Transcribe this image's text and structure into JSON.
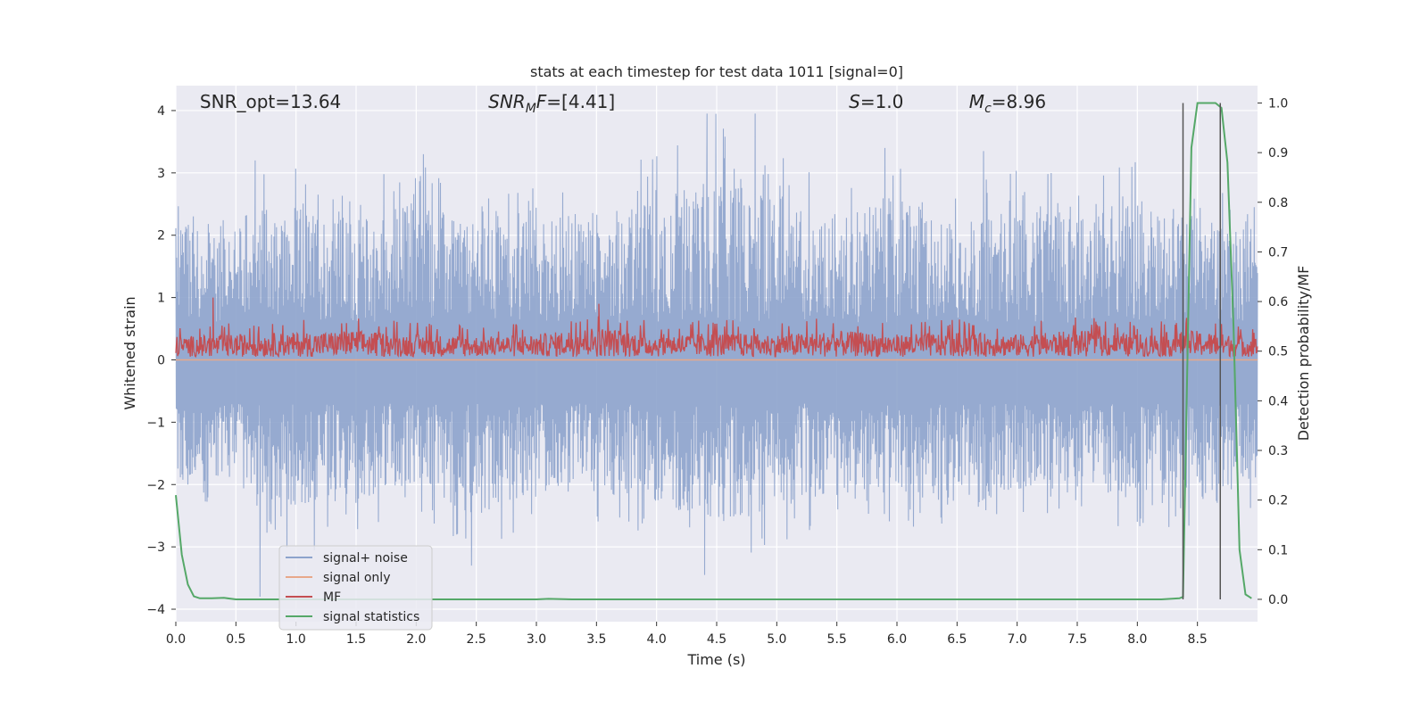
{
  "chart_data": {
    "type": "line",
    "title": "stats at each timestep for test data 1011 [signal=0]",
    "xlabel": "Time (s)",
    "ylabel": "Whitened strain",
    "y2label": "Detection probability/MF",
    "xlim": [
      0.0,
      9.0
    ],
    "ylim": [
      -4.2,
      4.4
    ],
    "y2lim": [
      -0.045,
      1.035
    ],
    "x_ticks": [
      0.0,
      0.5,
      1.0,
      1.5,
      2.0,
      2.5,
      3.0,
      3.5,
      4.0,
      4.5,
      5.0,
      5.5,
      6.0,
      6.5,
      7.0,
      7.5,
      8.0,
      8.5
    ],
    "x_tick_labels": [
      "0.0",
      "0.5",
      "1.0",
      "1.5",
      "2.0",
      "2.5",
      "3.0",
      "3.5",
      "4.0",
      "4.5",
      "5.0",
      "5.5",
      "6.0",
      "6.5",
      "7.0",
      "7.5",
      "8.0",
      "8.5"
    ],
    "y_ticks": [
      -4,
      -3,
      -2,
      -1,
      0,
      1,
      2,
      3,
      4
    ],
    "y_tick_labels": [
      "−4",
      "−3",
      "−2",
      "−1",
      "0",
      "1",
      "2",
      "3",
      "4"
    ],
    "y2_ticks": [
      0.0,
      0.1,
      0.2,
      0.3,
      0.4,
      0.5,
      0.6,
      0.7,
      0.8,
      0.9,
      1.0
    ],
    "y2_tick_labels": [
      "0.0",
      "0.1",
      "0.2",
      "0.3",
      "0.4",
      "0.5",
      "0.6",
      "0.7",
      "0.8",
      "0.9",
      "1.0"
    ],
    "grid": true,
    "legend_position": "lower-left",
    "annotations": [
      {
        "text": "SNR_opt=13.64",
        "x": 0.2
      },
      {
        "text": "SNR",
        "sub": "M",
        "tail": "F=[4.41]",
        "x": 2.6
      },
      {
        "text": "S",
        "tail": "=1.0",
        "x": 5.6
      },
      {
        "text": "M",
        "sub": "c",
        "tail": "=8.96",
        "x": 6.6
      }
    ],
    "vlines": [
      {
        "x": 8.38,
        "y2_range": [
          0.0,
          1.0
        ],
        "color": "#555555"
      },
      {
        "x": 8.69,
        "y2_range": [
          0.0,
          1.0
        ],
        "color": "#555555"
      }
    ],
    "series": [
      {
        "name": "signal+ noise",
        "color": "#8da3cc",
        "axis": "left",
        "note": "dense whitened strain trace",
        "envelope_samples": {
          "x": [
            0.0,
            0.5,
            1.0,
            1.5,
            2.0,
            2.5,
            3.0,
            3.5,
            4.0,
            4.5,
            5.0,
            5.5,
            6.0,
            6.5,
            7.0,
            7.5,
            8.0,
            8.5,
            9.0
          ],
          "upper": [
            2.6,
            2.9,
            3.1,
            2.8,
            3.3,
            2.6,
            2.8,
            3.0,
            3.3,
            4.0,
            3.3,
            2.9,
            3.4,
            2.6,
            3.3,
            2.8,
            3.4,
            2.9,
            2.6
          ],
          "lower": [
            -2.2,
            -2.5,
            -3.2,
            -2.8,
            -2.4,
            -3.3,
            -2.6,
            -2.6,
            -2.9,
            -3.5,
            -3.1,
            -2.6,
            -2.6,
            -3.1,
            -2.5,
            -2.6,
            -2.7,
            -2.7,
            -2.4
          ]
        },
        "peaks": [
          [
            0.66,
            3.2
          ],
          [
            0.7,
            -3.8
          ],
          [
            2.06,
            3.3
          ],
          [
            2.46,
            -3.3
          ],
          [
            4.42,
            3.95
          ],
          [
            4.4,
            -3.45
          ],
          [
            4.82,
            3.95
          ],
          [
            6.72,
            3.35
          ],
          [
            5.9,
            3.4
          ]
        ]
      },
      {
        "name": "signal only",
        "color": "#e8a88a",
        "axis": "left",
        "x": [
          0.0,
          9.0
        ],
        "y": [
          0.0,
          0.0
        ]
      },
      {
        "name": "MF",
        "color": "#c44e52",
        "axis": "left",
        "note": "matched filter output, dense trace",
        "envelope_samples": {
          "x": [
            0.0,
            0.5,
            1.0,
            1.5,
            2.0,
            2.5,
            3.0,
            3.5,
            4.0,
            4.5,
            5.0,
            5.5,
            6.0,
            6.5,
            7.0,
            7.5,
            8.0,
            8.5,
            9.0
          ],
          "upper": [
            0.55,
            0.6,
            0.65,
            0.7,
            0.6,
            0.55,
            0.6,
            0.8,
            0.6,
            0.65,
            0.6,
            0.7,
            0.6,
            0.65,
            0.6,
            0.7,
            0.6,
            0.7,
            0.5
          ],
          "lower": [
            0.0,
            0.0,
            0.0,
            0.0,
            0.0,
            0.0,
            0.0,
            0.0,
            0.0,
            0.0,
            0.0,
            0.0,
            0.0,
            0.0,
            0.0,
            0.0,
            0.0,
            0.0,
            0.0
          ]
        },
        "peaks": [
          [
            0.31,
            1.0
          ],
          [
            3.52,
            0.9
          ]
        ]
      },
      {
        "name": "signal statistics",
        "color": "#55a868",
        "axis": "right",
        "x": [
          0.0,
          0.05,
          0.1,
          0.15,
          0.2,
          0.3,
          0.4,
          0.5,
          0.8,
          1.5,
          3.0,
          3.1,
          3.3,
          5.0,
          7.0,
          8.2,
          8.35,
          8.38,
          8.45,
          8.5,
          8.55,
          8.65,
          8.7,
          8.75,
          8.8,
          8.85,
          8.9,
          8.95
        ],
        "y": [
          0.21,
          0.09,
          0.03,
          0.006,
          0.002,
          0.002,
          0.003,
          0.0,
          0.0,
          0.0,
          0.0,
          0.001,
          0.0,
          0.0,
          0.0,
          0.0,
          0.002,
          0.005,
          0.91,
          1.0,
          1.0,
          1.0,
          0.99,
          0.88,
          0.55,
          0.1,
          0.01,
          0.002
        ]
      }
    ]
  }
}
